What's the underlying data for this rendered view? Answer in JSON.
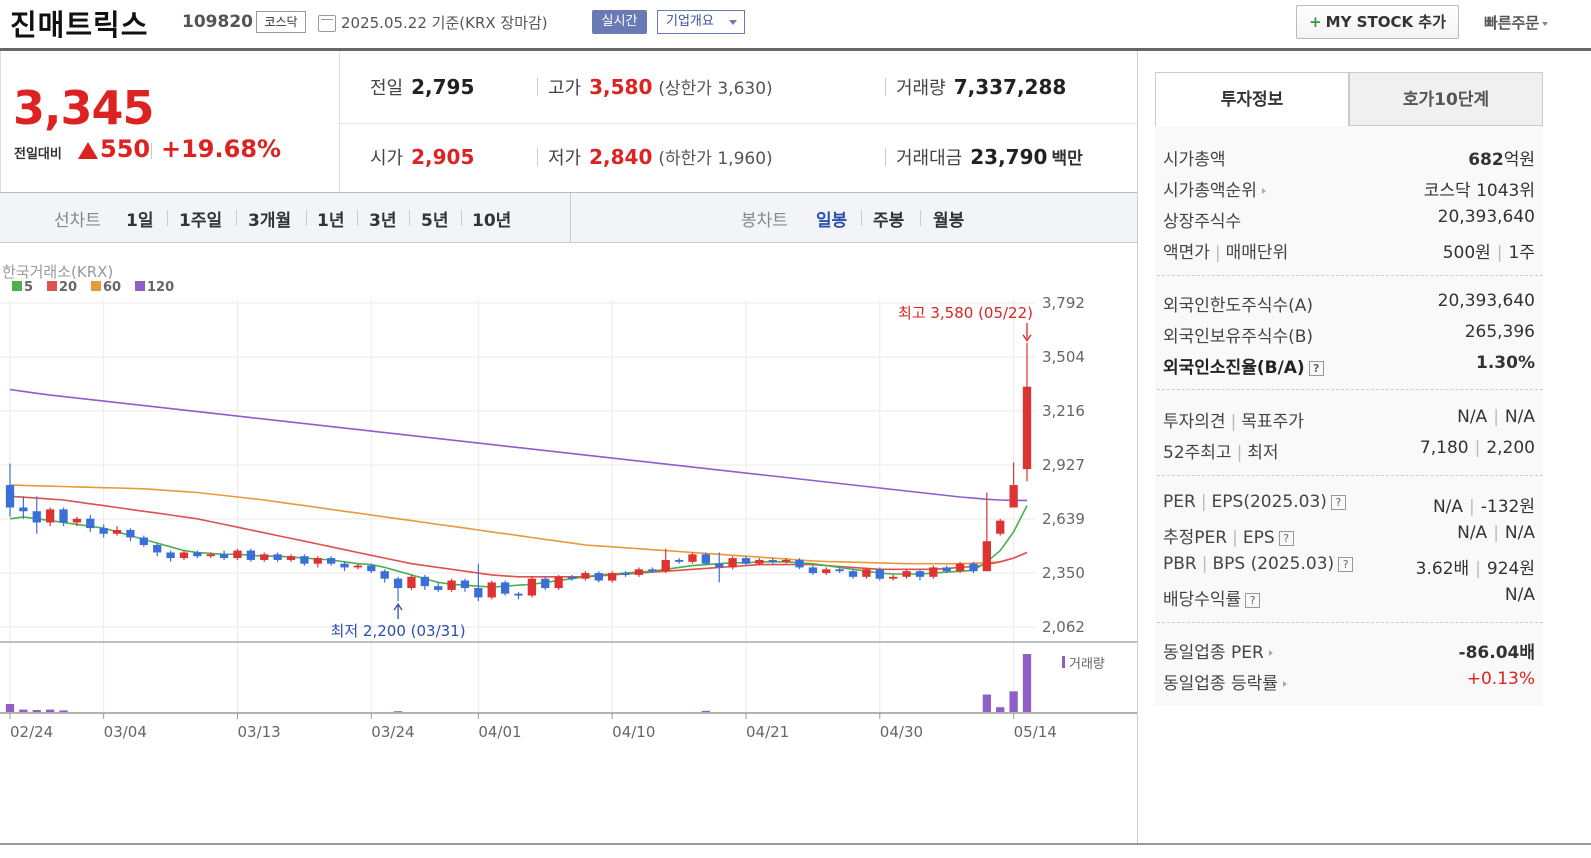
{
  "header": {
    "stock_name": "진매트릭스",
    "stock_code": "109820",
    "market": "코스닥",
    "date_text": "2025.05.22  기준(KRX 장마감)",
    "realtime_label": "실시간",
    "company_label": "기업개요",
    "mystock_plus": "+",
    "mystock_label": "MY STOCK 추가",
    "quick_order_label": "빠른주문"
  },
  "price": {
    "current": "3,345",
    "change_label": "전일대비",
    "change": "550",
    "change_pct": "+19.68%"
  },
  "stats": {
    "prev_label": "전일",
    "prev": "2,795",
    "high_label": "고가",
    "high": "3,580",
    "upper_limit": "(상한가 3,630)",
    "volume_label": "거래량",
    "volume": "7,337,288",
    "open_label": "시가",
    "open": "2,905",
    "low_label": "저가",
    "low": "2,840",
    "lower_limit": "(하한가 1,960)",
    "amount_label": "거래대금",
    "amount": "23,790",
    "amount_unit": "백만"
  },
  "chart_tabs": {
    "line_chart": "선차트",
    "periods": [
      "1일",
      "1주일",
      "3개월",
      "1년",
      "3년",
      "5년",
      "10년"
    ],
    "candle_chart": "봉차트",
    "candle_periods": [
      "일봉",
      "주봉",
      "월봉"
    ],
    "active_candle": "일봉"
  },
  "colors": {
    "up": "#dd3333",
    "down": "#3a6fd8",
    "ma5": "#4caf50",
    "ma20": "#e05050",
    "ma60": "#e69a3a",
    "ma120": "#8f5fc8"
  },
  "chart_data": {
    "type": "candlestick",
    "source": "한국거래소(KRX)",
    "legend": [
      {
        "name": "5",
        "color": "#4caf50"
      },
      {
        "name": "20",
        "color": "#e05050"
      },
      {
        "name": "60",
        "color": "#e69a3a"
      },
      {
        "name": "120",
        "color": "#8f5fc8"
      }
    ],
    "y_ticks": [
      "3,792",
      "3,504",
      "3,216",
      "2,927",
      "2,639",
      "2,350",
      "2,062"
    ],
    "ylim": [
      2062,
      3792
    ],
    "x_ticks": [
      "02/24",
      "03/04",
      "03/13",
      "03/24",
      "04/01",
      "04/10",
      "04/21",
      "04/30",
      "05/14"
    ],
    "volume_label": "거래량",
    "high_annotation": "최고 3,580 (05/22)",
    "low_annotation": "최저 2,200 (03/31)",
    "candles": [
      [
        2820,
        2700,
        2935,
        2650
      ],
      [
        2700,
        2680,
        2760,
        2640
      ],
      [
        2680,
        2620,
        2760,
        2560
      ],
      [
        2620,
        2690,
        2700,
        2600
      ],
      [
        2690,
        2620,
        2700,
        2600
      ],
      [
        2620,
        2640,
        2650,
        2600
      ],
      [
        2640,
        2590,
        2660,
        2570
      ],
      [
        2590,
        2560,
        2610,
        2540
      ],
      [
        2560,
        2580,
        2600,
        2550
      ],
      [
        2580,
        2540,
        2590,
        2520
      ],
      [
        2540,
        2500,
        2550,
        2490
      ],
      [
        2500,
        2460,
        2510,
        2440
      ],
      [
        2460,
        2430,
        2470,
        2410
      ],
      [
        2430,
        2460,
        2470,
        2420
      ],
      [
        2460,
        2440,
        2470,
        2430
      ],
      [
        2440,
        2450,
        2460,
        2430
      ],
      [
        2450,
        2430,
        2470,
        2420
      ],
      [
        2430,
        2470,
        2480,
        2420
      ],
      [
        2470,
        2420,
        2480,
        2410
      ],
      [
        2420,
        2450,
        2460,
        2410
      ],
      [
        2450,
        2420,
        2460,
        2410
      ],
      [
        2420,
        2440,
        2450,
        2410
      ],
      [
        2440,
        2400,
        2450,
        2390
      ],
      [
        2400,
        2430,
        2440,
        2380
      ],
      [
        2430,
        2400,
        2440,
        2390
      ],
      [
        2400,
        2380,
        2410,
        2360
      ],
      [
        2380,
        2390,
        2400,
        2370
      ],
      [
        2390,
        2360,
        2400,
        2350
      ],
      [
        2360,
        2320,
        2370,
        2300
      ],
      [
        2320,
        2270,
        2330,
        2200
      ],
      [
        2270,
        2330,
        2340,
        2260
      ],
      [
        2330,
        2280,
        2340,
        2260
      ],
      [
        2280,
        2260,
        2300,
        2250
      ],
      [
        2260,
        2310,
        2320,
        2250
      ],
      [
        2310,
        2270,
        2320,
        2250
      ],
      [
        2270,
        2220,
        2400,
        2200
      ],
      [
        2220,
        2300,
        2310,
        2210
      ],
      [
        2300,
        2240,
        2310,
        2230
      ],
      [
        2240,
        2230,
        2250,
        2210
      ],
      [
        2230,
        2320,
        2330,
        2220
      ],
      [
        2320,
        2270,
        2330,
        2260
      ],
      [
        2270,
        2330,
        2340,
        2260
      ],
      [
        2330,
        2320,
        2340,
        2310
      ],
      [
        2320,
        2350,
        2360,
        2310
      ],
      [
        2350,
        2310,
        2360,
        2300
      ],
      [
        2310,
        2350,
        2360,
        2300
      ],
      [
        2350,
        2340,
        2360,
        2330
      ],
      [
        2340,
        2370,
        2380,
        2330
      ],
      [
        2370,
        2360,
        2380,
        2350
      ],
      [
        2360,
        2420,
        2480,
        2350
      ],
      [
        2420,
        2410,
        2430,
        2400
      ],
      [
        2410,
        2450,
        2460,
        2400
      ],
      [
        2450,
        2400,
        2460,
        2390
      ],
      [
        2400,
        2380,
        2460,
        2300
      ],
      [
        2380,
        2430,
        2440,
        2370
      ],
      [
        2430,
        2400,
        2440,
        2390
      ],
      [
        2400,
        2420,
        2430,
        2390
      ],
      [
        2420,
        2410,
        2430,
        2400
      ],
      [
        2410,
        2420,
        2430,
        2400
      ],
      [
        2420,
        2380,
        2430,
        2370
      ],
      [
        2380,
        2350,
        2390,
        2340
      ],
      [
        2350,
        2370,
        2380,
        2340
      ],
      [
        2370,
        2360,
        2380,
        2350
      ],
      [
        2360,
        2330,
        2370,
        2320
      ],
      [
        2330,
        2370,
        2380,
        2320
      ],
      [
        2370,
        2320,
        2380,
        2310
      ],
      [
        2320,
        2330,
        2340,
        2310
      ],
      [
        2330,
        2360,
        2370,
        2320
      ],
      [
        2360,
        2330,
        2370,
        2310
      ],
      [
        2330,
        2380,
        2390,
        2320
      ],
      [
        2380,
        2360,
        2390,
        2350
      ],
      [
        2360,
        2400,
        2410,
        2350
      ],
      [
        2400,
        2360,
        2410,
        2350
      ],
      [
        2360,
        2520,
        2780,
        2360
      ],
      [
        2560,
        2630,
        2640,
        2550
      ],
      [
        2700,
        2820,
        2940,
        2700
      ],
      [
        2905,
        3345,
        3580,
        2840
      ]
    ],
    "ma5": [
      2640,
      2650,
      2640,
      2630,
      2620,
      2610,
      2600,
      2590,
      2570,
      2550,
      2530,
      2510,
      2490,
      2470,
      2460,
      2455,
      2450,
      2450,
      2445,
      2440,
      2440,
      2435,
      2430,
      2425,
      2420,
      2410,
      2400,
      2395,
      2380,
      2360,
      2340,
      2320,
      2300,
      2290,
      2285,
      2280,
      2275,
      2280,
      2285,
      2290,
      2300,
      2310,
      2320,
      2330,
      2340,
      2345,
      2350,
      2355,
      2360,
      2370,
      2380,
      2390,
      2395,
      2400,
      2405,
      2405,
      2410,
      2410,
      2410,
      2405,
      2400,
      2390,
      2380,
      2370,
      2360,
      2350,
      2345,
      2345,
      2345,
      2350,
      2355,
      2360,
      2365,
      2410,
      2470,
      2570,
      2710
    ],
    "ma20": [
      2760,
      2755,
      2750,
      2745,
      2740,
      2730,
      2720,
      2710,
      2700,
      2690,
      2680,
      2670,
      2660,
      2650,
      2640,
      2625,
      2610,
      2595,
      2580,
      2565,
      2550,
      2535,
      2520,
      2505,
      2490,
      2475,
      2460,
      2445,
      2430,
      2415,
      2400,
      2390,
      2380,
      2370,
      2360,
      2350,
      2340,
      2335,
      2330,
      2330,
      2330,
      2330,
      2330,
      2330,
      2335,
      2340,
      2345,
      2350,
      2355,
      2360,
      2365,
      2370,
      2375,
      2380,
      2385,
      2390,
      2395,
      2395,
      2395,
      2395,
      2395,
      2390,
      2385,
      2380,
      2375,
      2370,
      2370,
      2370,
      2370,
      2370,
      2375,
      2380,
      2385,
      2395,
      2410,
      2430,
      2460
    ],
    "ma60": [
      2820,
      2818,
      2816,
      2814,
      2812,
      2810,
      2808,
      2806,
      2804,
      2802,
      2800,
      2795,
      2790,
      2785,
      2780,
      2772,
      2764,
      2756,
      2748,
      2740,
      2730,
      2720,
      2710,
      2700,
      2690,
      2680,
      2670,
      2660,
      2650,
      2640,
      2630,
      2620,
      2610,
      2600,
      2590,
      2580,
      2570,
      2560,
      2550,
      2540,
      2530,
      2520,
      2510,
      2500,
      2495,
      2490,
      2485,
      2480,
      2475,
      2470,
      2465,
      2460,
      2455,
      2450,
      2445,
      2440,
      2435,
      2430,
      2425,
      2420,
      2415,
      2412,
      2410,
      2408,
      2406,
      2404,
      2402,
      2400,
      2400,
      2400,
      2400,
      2400,
      2402,
      2405,
      2410,
      2430,
      2460
    ],
    "ma120": [
      3330,
      3320,
      3310,
      3300,
      3292,
      3284,
      3276,
      3268,
      3260,
      3252,
      3244,
      3236,
      3228,
      3220,
      3212,
      3204,
      3196,
      3188,
      3180,
      3172,
      3164,
      3156,
      3148,
      3140,
      3132,
      3124,
      3116,
      3108,
      3100,
      3092,
      3084,
      3076,
      3068,
      3060,
      3052,
      3044,
      3036,
      3028,
      3020,
      3012,
      3004,
      2996,
      2988,
      2980,
      2972,
      2964,
      2956,
      2948,
      2940,
      2932,
      2924,
      2916,
      2908,
      2900,
      2892,
      2884,
      2876,
      2868,
      2860,
      2852,
      2844,
      2836,
      2828,
      2820,
      2812,
      2804,
      2796,
      2788,
      2780,
      2772,
      2764,
      2756,
      2750,
      2744,
      2740,
      2738,
      2738
    ],
    "volumes": [
      1.0,
      0.3,
      0.25,
      0.3,
      0.2,
      0,
      0,
      0,
      0,
      0,
      0,
      0,
      0,
      0,
      0,
      0,
      0,
      0,
      0,
      0,
      0,
      0,
      0,
      0,
      0,
      0,
      0,
      0,
      0,
      0.1,
      0,
      0,
      0,
      0,
      0,
      0,
      0,
      0,
      0,
      0,
      0,
      0,
      0,
      0,
      0,
      0,
      0,
      0,
      0,
      0,
      0,
      0,
      0.15,
      0,
      0,
      0,
      0,
      0,
      0,
      0,
      0,
      0,
      0,
      0,
      0,
      0,
      0,
      0,
      0,
      0,
      0,
      0,
      0,
      2.2,
      0.6,
      2.6,
      7.3
    ]
  },
  "right_panel": {
    "tab_active": "투자정보",
    "tab_inactive": "호가10단계",
    "market_cap_label": "시가총액",
    "market_cap_num": "682",
    "market_cap_unit": "억원",
    "cap_rank_label": "시가총액순위",
    "cap_rank": "코스닥 1043위",
    "shares_label": "상장주식수",
    "shares": "20,393,640",
    "par_label": "액면가",
    "unit_label": "매매단위",
    "par": "500원",
    "unit": "1주",
    "foreign_limit_label": "외국인한도주식수(A)",
    "foreign_limit": "20,393,640",
    "foreign_hold_label": "외국인보유주식수(B)",
    "foreign_hold": "265,396",
    "foreign_ratio_label": "외국인소진율(B/A)",
    "foreign_ratio": "1.30%",
    "opinion_label": "투자의견",
    "target_label": "목표주가",
    "opinion": "N/A",
    "target": "N/A",
    "w52_high_label": "52주최고",
    "w52_low_label": "최저",
    "w52_high": "7,180",
    "w52_low": "2,200",
    "per_label": "PER",
    "eps_label": "EPS(2025.03)",
    "per": "N/A",
    "eps": "-132원",
    "est_per_label": "추정PER",
    "est_eps_label": "EPS",
    "est_per": "N/A",
    "est_eps": "N/A",
    "pbr_label": "PBR",
    "bps_label": "BPS (2025.03)",
    "pbr": "3.62배",
    "bps": "924원",
    "div_label": "배당수익률",
    "div": "N/A",
    "sector_per_label": "동일업종 PER",
    "sector_per": "-86.04배",
    "sector_chg_label": "동일업종 등락률",
    "sector_chg": "+0.13%",
    "q_mark": "?"
  }
}
